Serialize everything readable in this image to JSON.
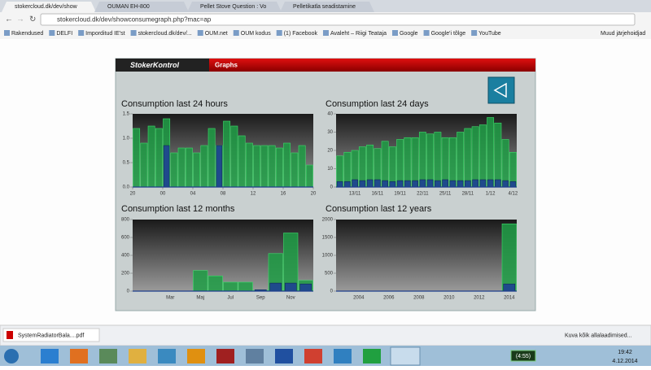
{
  "browser": {
    "tabs": [
      "stokercloud.dk/dev/show",
      "OUMAN EH-800",
      "Pellet Stove Question : Vo",
      "Pelletikatla seadistamine"
    ],
    "url": "stokercloud.dk/dev/showconsumegraph.php?mac=ap",
    "bookmarks": [
      "Rakendused",
      "DELFI",
      "Imporditud IE'st",
      "stokercloud.dk/dev/...",
      "OUM.net",
      "OUM kodus",
      "(1) Facebook",
      "Avaleht – Riigi Teataja",
      "Google",
      "Google'i tõlge",
      "YouTube"
    ],
    "other_bookmarks": "Muud järjehoidjad",
    "download": "SystemRadiatorBala....pdf",
    "show_downloads": "Kuva kõik allalaadimised...",
    "battery": "(4:55)",
    "time": "19:42",
    "date": "4.12.2014"
  },
  "app": {
    "brand": "StokerKontrol",
    "nav": "Graphs"
  },
  "chart_data": [
    {
      "type": "bar",
      "title": "Consumption last 24 hours",
      "xlim": [
        0,
        24
      ],
      "xticks": [
        {
          "value": 0,
          "label": "20"
        },
        {
          "value": 4,
          "label": "00"
        },
        {
          "value": 8,
          "label": "04"
        },
        {
          "value": 12,
          "label": "08"
        },
        {
          "value": 16,
          "label": "12"
        },
        {
          "value": 20,
          "label": "16"
        },
        {
          "value": 24,
          "label": "20"
        }
      ],
      "ylim": [
        0,
        1.5
      ],
      "yticks": [
        {
          "value": 0,
          "label": "0.0"
        },
        0.5,
        {
          "value": 1,
          "label": "1.0"
        },
        1.5
      ],
      "series": [
        {
          "color": "#1e9e45",
          "values": [
            1.2,
            0.9,
            1.25,
            1.2,
            1.4,
            0.7,
            0.8,
            0.8,
            0.7,
            0.85,
            1.2,
            0.85,
            1.35,
            1.25,
            1.05,
            0.9,
            0.85,
            0.85,
            0.85,
            0.8,
            0.9,
            0.7,
            0.85,
            0.45
          ]
        },
        {
          "color": "#1f4a8c",
          "values": [
            0,
            0,
            0,
            0,
            0.85,
            0,
            0,
            0,
            0,
            0,
            0,
            0.85,
            0,
            0,
            0,
            0,
            0,
            0,
            0,
            0,
            0,
            0,
            0,
            0
          ]
        }
      ]
    },
    {
      "type": "bar",
      "title": "Consumption last 24 days",
      "categories": [
        null,
        null,
        "13/11",
        null,
        null,
        "16/11",
        null,
        null,
        "19/11",
        null,
        null,
        "22/11",
        null,
        null,
        "25/11",
        null,
        null,
        "28/11",
        null,
        null,
        "1/12",
        null,
        null,
        "4/12"
      ],
      "ylim": [
        0,
        40
      ],
      "yticks": [
        0,
        10,
        20,
        30,
        40
      ],
      "series": [
        {
          "color": "#1e9e45",
          "values": [
            17,
            19,
            20,
            22,
            23,
            21,
            25,
            22,
            26,
            27,
            27,
            30,
            29,
            30,
            27,
            27,
            30,
            32,
            33,
            34,
            38,
            35,
            26,
            19
          ]
        },
        {
          "color": "#1f4a8c",
          "values": [
            3,
            3,
            4,
            3.5,
            4,
            4,
            3.5,
            3,
            3.5,
            3.5,
            3.5,
            4,
            4,
            3.5,
            4,
            3.5,
            3.5,
            3.5,
            4,
            4,
            4,
            4,
            3.5,
            3
          ]
        }
      ]
    },
    {
      "type": "bar",
      "title": "Consumption last 12 months",
      "categories": [
        null,
        null,
        "Mar",
        null,
        "Maj",
        null,
        "Jul",
        null,
        "Sep",
        null,
        "Nov",
        null
      ],
      "ylim": [
        0,
        800
      ],
      "yticks": [
        0,
        200,
        400,
        600,
        800
      ],
      "series": [
        {
          "color": "#1e9e45",
          "values": [
            0,
            0,
            0,
            0,
            230,
            170,
            100,
            100,
            10,
            420,
            650,
            120
          ]
        },
        {
          "color": "#1f4a8c",
          "values": [
            0,
            0,
            0,
            0,
            0,
            0,
            0,
            0,
            15,
            90,
            90,
            80
          ]
        }
      ]
    },
    {
      "type": "bar",
      "title": "Consumption last 12 years",
      "categories": [
        null,
        "2004",
        null,
        "2006",
        null,
        "2008",
        null,
        "2010",
        null,
        "2012",
        null,
        "2014"
      ],
      "ylim": [
        0,
        2000
      ],
      "yticks": [
        0,
        500,
        1000,
        1500,
        2000
      ],
      "series": [
        {
          "color": "#1e9e45",
          "values": [
            0,
            0,
            0,
            0,
            0,
            0,
            0,
            0,
            0,
            0,
            0,
            1880
          ]
        },
        {
          "color": "#1f4a8c",
          "values": [
            0,
            0,
            0,
            0,
            0,
            0,
            0,
            0,
            0,
            0,
            0,
            200
          ]
        }
      ]
    }
  ]
}
